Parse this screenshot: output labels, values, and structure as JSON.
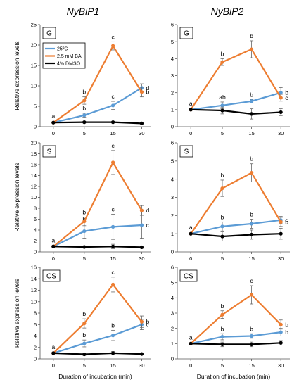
{
  "figure": {
    "column_titles": [
      "NyBiP1",
      "NyBiP2"
    ],
    "row_ids": [
      "G",
      "S",
      "CS"
    ]
  },
  "chart_data": [
    {
      "type": "line",
      "id": "NyBiP1-G",
      "panel_label": "G",
      "x": [
        0,
        5,
        15,
        30
      ],
      "x_ticks": [
        "0",
        "5",
        "15",
        "30"
      ],
      "ylabel": "Relative expression levels",
      "xlabel": "",
      "ylim": [
        0,
        25
      ],
      "y_ticks": [
        0,
        5,
        10,
        15,
        20,
        25
      ],
      "legend": {
        "position": "top-left",
        "entries": [
          "25ºC",
          "2.5 mM BA",
          "4% DMSO"
        ]
      },
      "series": [
        {
          "name": "25ºC",
          "color": "#5b9bd5",
          "values": [
            1,
            2.8,
            5.2,
            9.5
          ],
          "errors": [
            0,
            0.5,
            1.0,
            1.0
          ],
          "labels": [
            "a",
            "b",
            "c",
            "d"
          ]
        },
        {
          "name": "2.5 mM BA",
          "color": "#ed7d31",
          "values": [
            1,
            6.4,
            19.8,
            8.5
          ],
          "errors": [
            0,
            0.9,
            1.0,
            1.2
          ],
          "labels": [
            "",
            "b",
            "c",
            "b"
          ]
        },
        {
          "name": "4% DMSO",
          "color": "#000000",
          "values": [
            1,
            1.1,
            1.1,
            0.8
          ],
          "errors": [
            0,
            0.2,
            0.2,
            0.1
          ],
          "labels": [
            "",
            "",
            "",
            ""
          ]
        }
      ]
    },
    {
      "type": "line",
      "id": "NyBiP2-G",
      "panel_label": "G",
      "x": [
        0,
        5,
        15,
        30
      ],
      "x_ticks": [
        "0",
        "5",
        "15",
        "30"
      ],
      "ylabel": "",
      "xlabel": "",
      "ylim": [
        0,
        6
      ],
      "y_ticks": [
        0,
        1,
        2,
        3,
        4,
        5,
        6
      ],
      "series": [
        {
          "name": "25ºC",
          "color": "#5b9bd5",
          "values": [
            1,
            1.25,
            1.5,
            2.0
          ],
          "errors": [
            0,
            0.2,
            0.1,
            0.3
          ],
          "labels": [
            "a",
            "ab",
            "b",
            "b"
          ]
        },
        {
          "name": "2.5 mM BA",
          "color": "#ed7d31",
          "values": [
            1,
            3.8,
            4.55,
            1.7
          ],
          "errors": [
            0,
            0.2,
            0.5,
            0.2
          ],
          "labels": [
            "",
            "b",
            "b",
            "c"
          ]
        },
        {
          "name": "4% DMSO",
          "color": "#000000",
          "values": [
            1,
            0.95,
            0.75,
            0.85
          ],
          "errors": [
            0,
            0.2,
            0.3,
            0.2
          ],
          "labels": [
            "",
            "",
            "",
            ""
          ]
        }
      ]
    },
    {
      "type": "line",
      "id": "NyBiP1-S",
      "panel_label": "S",
      "x": [
        0,
        5,
        15,
        30
      ],
      "x_ticks": [
        "0",
        "5",
        "15",
        "30"
      ],
      "ylabel": "Relative expression levels",
      "xlabel": "",
      "ylim": [
        0,
        20
      ],
      "y_ticks": [
        0,
        2,
        4,
        6,
        8,
        10,
        12,
        14,
        16,
        18,
        20
      ],
      "series": [
        {
          "name": "25ºC",
          "color": "#5b9bd5",
          "values": [
            1,
            3.8,
            4.6,
            4.9
          ],
          "errors": [
            0,
            1.3,
            2.3,
            2.4
          ],
          "labels": [
            "a",
            "b",
            "c",
            "c"
          ]
        },
        {
          "name": "2.5 mM BA",
          "color": "#ed7d31",
          "values": [
            1,
            5.6,
            16.4,
            7.6
          ],
          "errors": [
            0,
            0.8,
            2.2,
            0.9
          ],
          "labels": [
            "",
            "b",
            "c",
            "d"
          ]
        },
        {
          "name": "4% DMSO",
          "color": "#000000",
          "values": [
            1,
            0.9,
            1.0,
            0.85
          ],
          "errors": [
            0,
            0.2,
            0.4,
            0.2
          ],
          "labels": [
            "",
            "",
            "",
            ""
          ]
        }
      ]
    },
    {
      "type": "line",
      "id": "NyBiP2-S",
      "panel_label": "S",
      "x": [
        0,
        5,
        15,
        30
      ],
      "x_ticks": [
        "0",
        "5",
        "15",
        "30"
      ],
      "ylabel": "",
      "xlabel": "",
      "ylim": [
        0,
        6
      ],
      "y_ticks": [
        0,
        1,
        2,
        3,
        4,
        5,
        6
      ],
      "series": [
        {
          "name": "25ºC",
          "color": "#5b9bd5",
          "values": [
            1,
            1.4,
            1.55,
            1.75
          ],
          "errors": [
            0,
            0.25,
            0.25,
            0.2
          ],
          "labels": [
            "a",
            "b",
            "b",
            "c"
          ]
        },
        {
          "name": "2.5 mM BA",
          "color": "#ed7d31",
          "values": [
            1,
            3.5,
            4.35,
            1.65
          ],
          "errors": [
            0,
            0.45,
            0.5,
            0.25
          ],
          "labels": [
            "",
            "b",
            "b",
            "b"
          ]
        },
        {
          "name": "4% DMSO",
          "color": "#000000",
          "values": [
            1,
            0.85,
            0.95,
            1.0
          ],
          "errors": [
            0,
            0.25,
            0.25,
            0.3
          ],
          "labels": [
            "",
            "",
            "",
            ""
          ]
        }
      ]
    },
    {
      "type": "line",
      "id": "NyBiP1-CS",
      "panel_label": "CS",
      "x": [
        0,
        5,
        15,
        30
      ],
      "x_ticks": [
        "0",
        "5",
        "15",
        "30"
      ],
      "ylabel": "Relative expression levels",
      "xlabel": "Duration of incubation (min)",
      "ylim": [
        0,
        16
      ],
      "y_ticks": [
        0,
        2,
        4,
        6,
        8,
        10,
        12,
        14,
        16
      ],
      "series": [
        {
          "name": "25ºC",
          "color": "#5b9bd5",
          "values": [
            1,
            2.7,
            4.1,
            6.0
          ],
          "errors": [
            0,
            0.6,
            0.9,
            0.9
          ],
          "labels": [
            "a",
            "b",
            "b",
            "c"
          ]
        },
        {
          "name": "2.5 mM BA",
          "color": "#ed7d31",
          "values": [
            1,
            6.2,
            13.0,
            6.5
          ],
          "errors": [
            0,
            0.8,
            1.3,
            1.0
          ],
          "labels": [
            "",
            "b",
            "c",
            "b"
          ]
        },
        {
          "name": "4% DMSO",
          "color": "#000000",
          "values": [
            1,
            0.8,
            1.0,
            0.85
          ],
          "errors": [
            0,
            0.2,
            0.3,
            0.15
          ],
          "labels": [
            "",
            "",
            "",
            ""
          ]
        }
      ]
    },
    {
      "type": "line",
      "id": "NyBiP2-CS",
      "panel_label": "CS",
      "x": [
        0,
        5,
        15,
        30
      ],
      "x_ticks": [
        "0",
        "5",
        "15",
        "30"
      ],
      "ylabel": "",
      "xlabel": "Duration of incubation (min)",
      "ylim": [
        0,
        6
      ],
      "y_ticks": [
        0,
        1,
        2,
        3,
        4,
        5,
        6
      ],
      "series": [
        {
          "name": "25ºC",
          "color": "#5b9bd5",
          "values": [
            1,
            1.45,
            1.5,
            1.75
          ],
          "errors": [
            0,
            0.2,
            0.15,
            0.25
          ],
          "labels": [
            "a",
            "b",
            "b",
            "b"
          ]
        },
        {
          "name": "2.5 mM BA",
          "color": "#ed7d31",
          "values": [
            1,
            2.9,
            4.2,
            2.25
          ],
          "errors": [
            0,
            0.25,
            0.6,
            0.3
          ],
          "labels": [
            "",
            "b",
            "c",
            "b"
          ]
        },
        {
          "name": "4% DMSO",
          "color": "#000000",
          "values": [
            1,
            0.95,
            0.95,
            1.05
          ],
          "errors": [
            0,
            0.15,
            0.15,
            0.15
          ],
          "labels": [
            "",
            "",
            "",
            ""
          ]
        }
      ]
    }
  ]
}
